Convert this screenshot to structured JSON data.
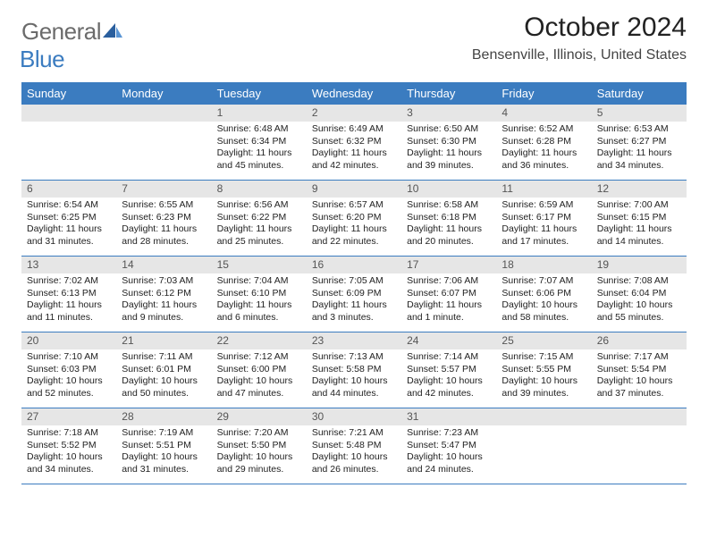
{
  "logo": {
    "text1": "General",
    "text2": "Blue"
  },
  "title": "October 2024",
  "location": "Bensenville, Illinois, United States",
  "day_headers": [
    "Sunday",
    "Monday",
    "Tuesday",
    "Wednesday",
    "Thursday",
    "Friday",
    "Saturday"
  ],
  "header_bg": "#3b7cc0",
  "header_fg": "#ffffff",
  "daynum_bg": "#e6e6e6",
  "row_border": "#3b7cc0",
  "weeks": [
    [
      {
        "n": "",
        "sr": "",
        "ss": "",
        "dl": ""
      },
      {
        "n": "",
        "sr": "",
        "ss": "",
        "dl": ""
      },
      {
        "n": "1",
        "sr": "Sunrise: 6:48 AM",
        "ss": "Sunset: 6:34 PM",
        "dl": "Daylight: 11 hours and 45 minutes."
      },
      {
        "n": "2",
        "sr": "Sunrise: 6:49 AM",
        "ss": "Sunset: 6:32 PM",
        "dl": "Daylight: 11 hours and 42 minutes."
      },
      {
        "n": "3",
        "sr": "Sunrise: 6:50 AM",
        "ss": "Sunset: 6:30 PM",
        "dl": "Daylight: 11 hours and 39 minutes."
      },
      {
        "n": "4",
        "sr": "Sunrise: 6:52 AM",
        "ss": "Sunset: 6:28 PM",
        "dl": "Daylight: 11 hours and 36 minutes."
      },
      {
        "n": "5",
        "sr": "Sunrise: 6:53 AM",
        "ss": "Sunset: 6:27 PM",
        "dl": "Daylight: 11 hours and 34 minutes."
      }
    ],
    [
      {
        "n": "6",
        "sr": "Sunrise: 6:54 AM",
        "ss": "Sunset: 6:25 PM",
        "dl": "Daylight: 11 hours and 31 minutes."
      },
      {
        "n": "7",
        "sr": "Sunrise: 6:55 AM",
        "ss": "Sunset: 6:23 PM",
        "dl": "Daylight: 11 hours and 28 minutes."
      },
      {
        "n": "8",
        "sr": "Sunrise: 6:56 AM",
        "ss": "Sunset: 6:22 PM",
        "dl": "Daylight: 11 hours and 25 minutes."
      },
      {
        "n": "9",
        "sr": "Sunrise: 6:57 AM",
        "ss": "Sunset: 6:20 PM",
        "dl": "Daylight: 11 hours and 22 minutes."
      },
      {
        "n": "10",
        "sr": "Sunrise: 6:58 AM",
        "ss": "Sunset: 6:18 PM",
        "dl": "Daylight: 11 hours and 20 minutes."
      },
      {
        "n": "11",
        "sr": "Sunrise: 6:59 AM",
        "ss": "Sunset: 6:17 PM",
        "dl": "Daylight: 11 hours and 17 minutes."
      },
      {
        "n": "12",
        "sr": "Sunrise: 7:00 AM",
        "ss": "Sunset: 6:15 PM",
        "dl": "Daylight: 11 hours and 14 minutes."
      }
    ],
    [
      {
        "n": "13",
        "sr": "Sunrise: 7:02 AM",
        "ss": "Sunset: 6:13 PM",
        "dl": "Daylight: 11 hours and 11 minutes."
      },
      {
        "n": "14",
        "sr": "Sunrise: 7:03 AM",
        "ss": "Sunset: 6:12 PM",
        "dl": "Daylight: 11 hours and 9 minutes."
      },
      {
        "n": "15",
        "sr": "Sunrise: 7:04 AM",
        "ss": "Sunset: 6:10 PM",
        "dl": "Daylight: 11 hours and 6 minutes."
      },
      {
        "n": "16",
        "sr": "Sunrise: 7:05 AM",
        "ss": "Sunset: 6:09 PM",
        "dl": "Daylight: 11 hours and 3 minutes."
      },
      {
        "n": "17",
        "sr": "Sunrise: 7:06 AM",
        "ss": "Sunset: 6:07 PM",
        "dl": "Daylight: 11 hours and 1 minute."
      },
      {
        "n": "18",
        "sr": "Sunrise: 7:07 AM",
        "ss": "Sunset: 6:06 PM",
        "dl": "Daylight: 10 hours and 58 minutes."
      },
      {
        "n": "19",
        "sr": "Sunrise: 7:08 AM",
        "ss": "Sunset: 6:04 PM",
        "dl": "Daylight: 10 hours and 55 minutes."
      }
    ],
    [
      {
        "n": "20",
        "sr": "Sunrise: 7:10 AM",
        "ss": "Sunset: 6:03 PM",
        "dl": "Daylight: 10 hours and 52 minutes."
      },
      {
        "n": "21",
        "sr": "Sunrise: 7:11 AM",
        "ss": "Sunset: 6:01 PM",
        "dl": "Daylight: 10 hours and 50 minutes."
      },
      {
        "n": "22",
        "sr": "Sunrise: 7:12 AM",
        "ss": "Sunset: 6:00 PM",
        "dl": "Daylight: 10 hours and 47 minutes."
      },
      {
        "n": "23",
        "sr": "Sunrise: 7:13 AM",
        "ss": "Sunset: 5:58 PM",
        "dl": "Daylight: 10 hours and 44 minutes."
      },
      {
        "n": "24",
        "sr": "Sunrise: 7:14 AM",
        "ss": "Sunset: 5:57 PM",
        "dl": "Daylight: 10 hours and 42 minutes."
      },
      {
        "n": "25",
        "sr": "Sunrise: 7:15 AM",
        "ss": "Sunset: 5:55 PM",
        "dl": "Daylight: 10 hours and 39 minutes."
      },
      {
        "n": "26",
        "sr": "Sunrise: 7:17 AM",
        "ss": "Sunset: 5:54 PM",
        "dl": "Daylight: 10 hours and 37 minutes."
      }
    ],
    [
      {
        "n": "27",
        "sr": "Sunrise: 7:18 AM",
        "ss": "Sunset: 5:52 PM",
        "dl": "Daylight: 10 hours and 34 minutes."
      },
      {
        "n": "28",
        "sr": "Sunrise: 7:19 AM",
        "ss": "Sunset: 5:51 PM",
        "dl": "Daylight: 10 hours and 31 minutes."
      },
      {
        "n": "29",
        "sr": "Sunrise: 7:20 AM",
        "ss": "Sunset: 5:50 PM",
        "dl": "Daylight: 10 hours and 29 minutes."
      },
      {
        "n": "30",
        "sr": "Sunrise: 7:21 AM",
        "ss": "Sunset: 5:48 PM",
        "dl": "Daylight: 10 hours and 26 minutes."
      },
      {
        "n": "31",
        "sr": "Sunrise: 7:23 AM",
        "ss": "Sunset: 5:47 PM",
        "dl": "Daylight: 10 hours and 24 minutes."
      },
      {
        "n": "",
        "sr": "",
        "ss": "",
        "dl": ""
      },
      {
        "n": "",
        "sr": "",
        "ss": "",
        "dl": ""
      }
    ]
  ]
}
